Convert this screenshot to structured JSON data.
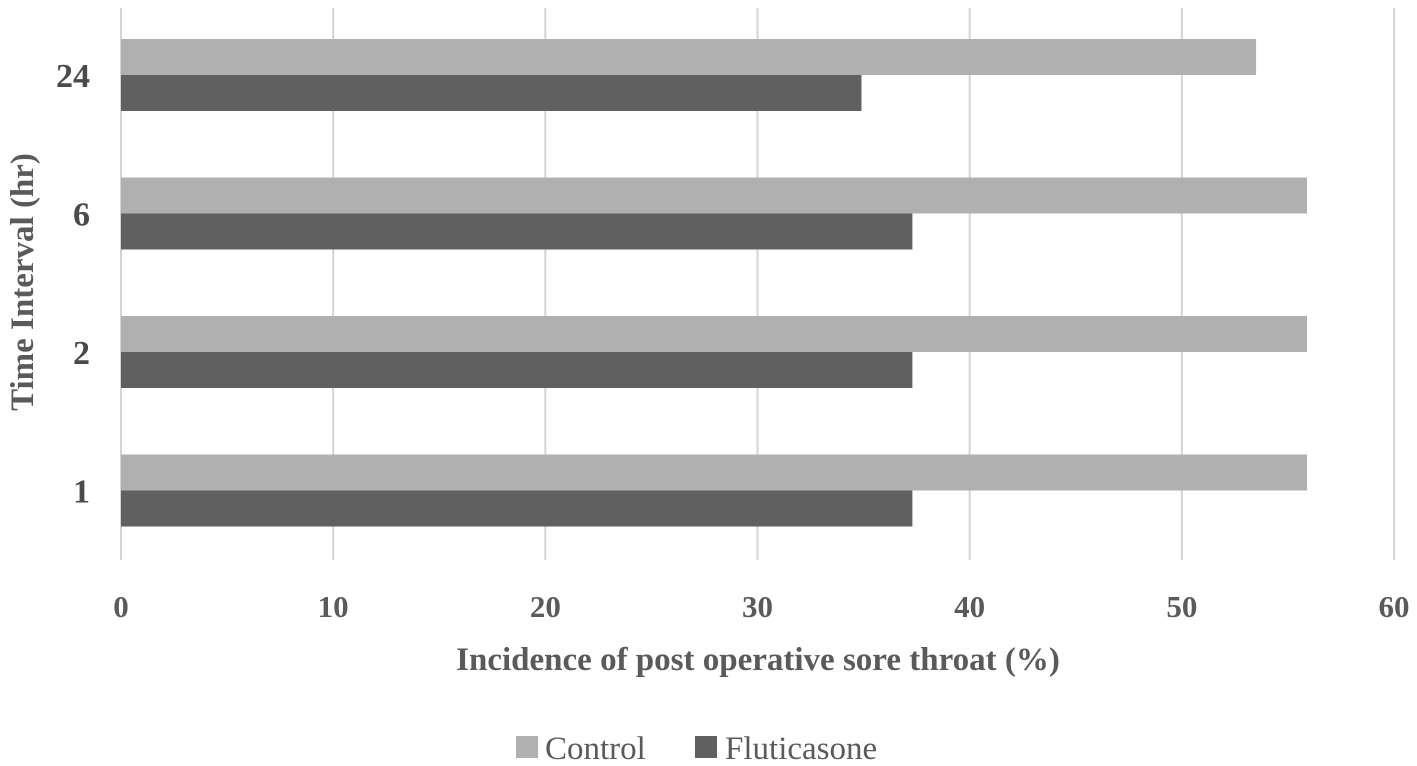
{
  "chart_data": {
    "type": "bar",
    "orientation": "horizontal",
    "categories": [
      "24",
      "6",
      "2",
      "1"
    ],
    "series": [
      {
        "name": "Control",
        "values": [
          53.5,
          55.9,
          55.9,
          55.9
        ],
        "color": "#b0b0b0"
      },
      {
        "name": "Fluticasone",
        "values": [
          34.9,
          37.3,
          37.3,
          37.3
        ],
        "color": "#606060"
      }
    ],
    "title": "",
    "xlabel": "Incidence of post operative sore throat (%)",
    "ylabel": "Time Interval (hr)",
    "xlim": [
      0,
      60
    ],
    "xticks": [
      "0",
      "10",
      "20",
      "30",
      "40",
      "50",
      "60"
    ],
    "grid": true,
    "legend_position": "bottom"
  }
}
